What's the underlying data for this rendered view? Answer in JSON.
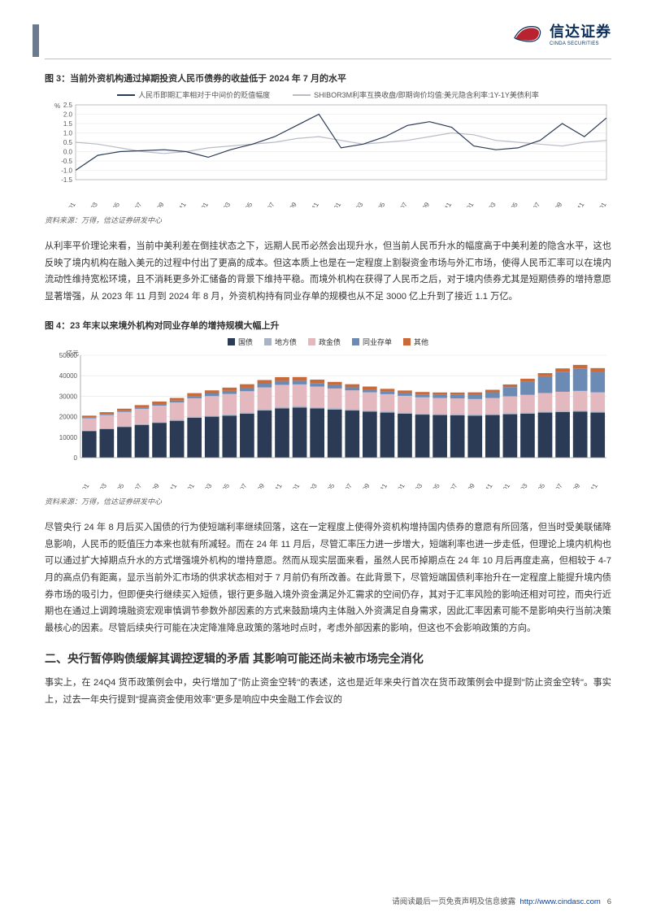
{
  "header": {
    "logo_cn": "信达证券",
    "logo_en": "CINDA SECURITIES"
  },
  "fig3": {
    "title": "图 3：当前外资机构通过掉期投资人民币债券的收益低于 2024 年 7 月的水平",
    "type": "line",
    "legend": [
      "人民币即期汇率相对于中间价的贬值幅度",
      "SHIBOR3M利率互换收盘/即期询价均值:美元隐含利率:1Y-1Y美债利率"
    ],
    "colors": [
      "#2b3a55",
      "#b8bcc5"
    ],
    "background_color": "#ffffff",
    "grid_color": "#e5e5e5",
    "ylabel": "%",
    "ylim": [
      -1.5,
      2.5
    ],
    "ytick_step": 0.5,
    "label_fontsize": 8,
    "line_width": 1.2,
    "x_categories": [
      "2021-01",
      "2021-03",
      "2021-05",
      "2021-07",
      "2021-09",
      "2021-11",
      "2022-01",
      "2022-03",
      "2022-05",
      "2022-07",
      "2022-09",
      "2022-11",
      "2023-01",
      "2023-03",
      "2023-05",
      "2023-07",
      "2023-09",
      "2023-11",
      "2024-01",
      "2024-03",
      "2024-05",
      "2024-07",
      "2024-09",
      "2024-11",
      "2025-01"
    ],
    "series1": [
      -1.0,
      -0.2,
      0.0,
      0.05,
      0.1,
      0.0,
      -0.3,
      0.1,
      0.4,
      0.8,
      1.4,
      2.0,
      0.2,
      0.4,
      0.8,
      1.4,
      1.6,
      1.3,
      0.3,
      0.1,
      0.2,
      0.6,
      1.5,
      0.8,
      1.8
    ],
    "series2": [
      0.5,
      0.4,
      0.2,
      0.0,
      -0.1,
      0.0,
      0.2,
      0.3,
      0.4,
      0.5,
      0.7,
      0.8,
      0.6,
      0.4,
      0.5,
      0.6,
      0.8,
      1.0,
      0.9,
      0.6,
      0.5,
      0.4,
      0.3,
      0.5,
      0.6
    ],
    "source": "资料来源：万得，信达证券研发中心"
  },
  "para1": "从利率平价理论来看，当前中美利差在倒挂状态之下，远期人民币必然会出现升水，但当前人民币升水的幅度高于中美利差的隐含水平，这也反映了境内机构在融入美元的过程中付出了更高的成本。但这本质上也是在一定程度上割裂资金市场与外汇市场，使得人民币汇率可以在境内流动性维持宽松环境，且不消耗更多外汇储备的背景下维持平稳。而境外机构在获得了人民币之后，对于境内债券尤其是短期债券的增持意愿显著增强，从 2023 年 11 月到 2024 年 8 月，外资机构持有同业存单的规模也从不足 3000 亿上升到了接近 1.1 万亿。",
  "fig4": {
    "title": "图 4：23 年末以来境外机构对同业存单的增持规模大幅上升",
    "type": "stacked-bar",
    "legend": [
      "国债",
      "地方债",
      "政金债",
      "同业存单",
      "其他"
    ],
    "colors": [
      "#2b3a55",
      "#a9b3c7",
      "#e3b8bf",
      "#6b8bb5",
      "#c96a3a"
    ],
    "ylabel": "亿元",
    "ylim": [
      0,
      50000
    ],
    "ytick_step": 10000,
    "background_color": "#ffffff",
    "grid_color": "#e5e5e5",
    "label_fontsize": 8,
    "bar_width": 0.82,
    "x_categories": [
      "2020-01",
      "2020-03",
      "2020-05",
      "2020-07",
      "2020-09",
      "2020-11",
      "2021-01",
      "2021-03",
      "2021-05",
      "2021-07",
      "2021-09",
      "2021-11",
      "2022-01",
      "2022-03",
      "2022-05",
      "2022-07",
      "2022-09",
      "2022-11",
      "2023-01",
      "2023-03",
      "2023-05",
      "2023-07",
      "2023-09",
      "2023-11",
      "2024-01",
      "2024-03",
      "2024-05",
      "2024-07",
      "2024-09",
      "2024-11"
    ],
    "stacks": {
      "guozhai": [
        13000,
        14000,
        15000,
        16000,
        17000,
        18000,
        19500,
        20000,
        20500,
        21500,
        23000,
        24000,
        24500,
        24000,
        23500,
        23000,
        22500,
        22000,
        21500,
        21000,
        20800,
        20700,
        20500,
        20800,
        21200,
        21500,
        22000,
        22300,
        22500,
        22000
      ],
      "difangzhai": [
        200,
        250,
        300,
        350,
        400,
        450,
        500,
        550,
        600,
        650,
        700,
        750,
        750,
        700,
        680,
        650,
        620,
        600,
        580,
        560,
        550,
        540,
        530,
        530,
        540,
        550,
        560,
        570,
        580,
        570
      ],
      "zhengjinzhai": [
        6000,
        6500,
        7000,
        7500,
        8000,
        8500,
        9000,
        9500,
        10000,
        10300,
        10600,
        10800,
        10500,
        10000,
        9600,
        9200,
        8800,
        8400,
        8100,
        7900,
        7800,
        7700,
        7600,
        7800,
        8200,
        8600,
        9000,
        9300,
        9500,
        9300
      ],
      "tongye": [
        500,
        550,
        600,
        700,
        800,
        900,
        1100,
        1300,
        1500,
        1700,
        1800,
        1900,
        1800,
        1700,
        1600,
        1500,
        1400,
        1300,
        1350,
        1400,
        1500,
        1700,
        2100,
        2800,
        4500,
        6500,
        8200,
        9800,
        11000,
        10200
      ],
      "qita": [
        800,
        900,
        1000,
        1100,
        1200,
        1300,
        1400,
        1500,
        1600,
        1700,
        1800,
        1850,
        1800,
        1700,
        1600,
        1500,
        1400,
        1300,
        1250,
        1200,
        1180,
        1160,
        1150,
        1200,
        1300,
        1400,
        1500,
        1600,
        1700,
        1650
      ]
    },
    "source": "资料来源：万得，信达证券研发中心"
  },
  "para2": "尽管央行 24 年 8 月后买入国债的行为使短端利率继续回落，这在一定程度上使得外资机构增持国内债券的意愿有所回落，但当时受美联储降息影响，人民币的贬值压力本来也就有所减轻。而在 24 年 11 月后，尽管汇率压力进一步增大，短端利率也进一步走低，但理论上境内机构也可以通过扩大掉期点升水的方式增强境外机构的增持意愿。然而从现实层面来看，虽然人民币掉期点在 24 年 10 月后再度走高，但相较于 4-7 月的高点仍有距离，显示当前外汇市场的供求状态相对于 7 月前仍有所改善。在此背景下，尽管短端国债利率抬升在一定程度上能提升境内债券市场的吸引力，但即便央行继续买入短债，银行更多融入境外资金满足外汇需求的空间仍存，其对于汇率风险的影响还相对可控，而央行近期也在通过上调跨境融资宏观审慎调节参数外部因素的方式来鼓励境内主体融入外资满足自身需求，因此汇率因素可能不是影响央行当前决策最核心的因素。尽管后续央行可能在决定降准降息政策的落地时点时，考虑外部因素的影响，但这也不会影响政策的方向。",
  "section2_title": "二、央行暂停购债缓解其调控逻辑的矛盾 其影响可能还尚未被市场完全消化",
  "para3": "事实上，在 24Q4 货币政策例会中，央行增加了\"防止资金空转\"的表述，这也是近年来央行首次在货币政策例会中提到\"防止资金空转\"。事实上，过去一年央行提到\"提高资金使用效率\"更多是响应中央金融工作会议的",
  "footer": {
    "text": "请阅读最后一页免责声明及信息披露",
    "url": "http://www.cindasc.com",
    "page": "6"
  }
}
